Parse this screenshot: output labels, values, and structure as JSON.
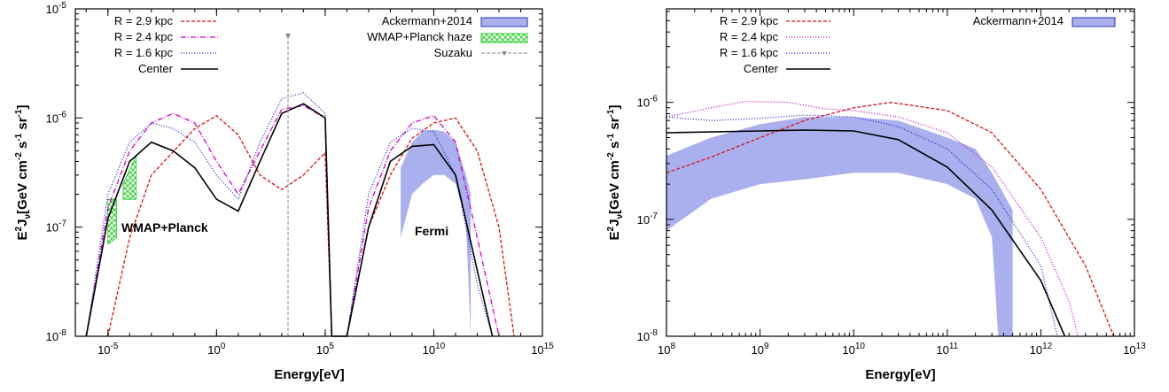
{
  "charts": [
    {
      "xlabel": "Energy[eV]",
      "ylabel": "E²Jν[GeV cm⁻² s⁻¹ sr⁻¹]",
      "x_ticks": [
        {
          "base": "10",
          "exp": "-5"
        },
        {
          "base": "10",
          "exp": "0"
        },
        {
          "base": "10",
          "exp": "5"
        },
        {
          "base": "10",
          "exp": "10"
        },
        {
          "base": "10",
          "exp": "15"
        }
      ],
      "y_ticks": [
        {
          "base": "10",
          "exp": "-8"
        },
        {
          "base": "10",
          "exp": "-7"
        },
        {
          "base": "10",
          "exp": "-6"
        },
        {
          "base": "10",
          "exp": "-5"
        }
      ],
      "legend_left": [
        "R = 2.9 kpc",
        "R = 2.4 kpc",
        "R = 1.6 kpc",
        "Center"
      ],
      "legend_right": [
        "Ackermann+2014",
        "WMAP+Planck haze",
        "Suzaku"
      ],
      "annotations": {
        "wmap": "WMAP+Planck",
        "fermi": "Fermi"
      }
    },
    {
      "xlabel": "Energy[eV]",
      "ylabel": "E²Jν[GeV cm⁻² s⁻¹ sr⁻¹]",
      "x_ticks": [
        {
          "base": "10",
          "exp": "8"
        },
        {
          "base": "10",
          "exp": "9"
        },
        {
          "base": "10",
          "exp": "10"
        },
        {
          "base": "10",
          "exp": "11"
        },
        {
          "base": "10",
          "exp": "12"
        },
        {
          "base": "10",
          "exp": "13"
        }
      ],
      "y_ticks": [
        {
          "base": "10",
          "exp": "-8"
        },
        {
          "base": "10",
          "exp": "-7"
        },
        {
          "base": "10",
          "exp": "-6"
        }
      ],
      "legend_left": [
        "R = 2.9 kpc",
        "R = 2.4 kpc",
        "R = 1.6 kpc",
        "Center"
      ],
      "legend_right": [
        "Ackermann+2014"
      ]
    }
  ],
  "colors": {
    "r29": "#dd1111",
    "r24": "#cc00cc",
    "r16": "#2222cc",
    "center": "#000000",
    "ackermann_fill": "#aab0ee",
    "ackermann_edge": "#2233aa",
    "haze": "#22cc22",
    "suzaku": "#888888"
  },
  "chart_data": [
    {
      "type": "line",
      "x_scale": "log",
      "y_scale": "log",
      "xlim": [
        3e-07,
        1000000000000000.0
      ],
      "ylim": [
        1e-08,
        1e-05
      ],
      "grid": false,
      "legend": "top",
      "series": [
        {
          "name": "R = 2.9 kpc",
          "style": "dashed",
          "points": [
            [
              1e-05,
              1e-08
            ],
            [
              0.0001,
              8e-08
            ],
            [
              0.001,
              3e-07
            ],
            [
              0.1,
              8e-07
            ],
            [
              1,
              1.05e-06
            ],
            [
              10,
              7e-07
            ],
            [
              100,
              3e-07
            ],
            [
              1000.0,
              2.2e-07
            ],
            [
              10000.0,
              3e-07
            ],
            [
              100000.0,
              4.8e-07
            ],
            [
              200000.0,
              1e-08
            ],
            [
              1000000.0,
              1e-08
            ],
            [
              10000000.0,
              1e-07
            ],
            [
              100000000.0,
              3e-07
            ],
            [
              1000000000.0,
              6.5e-07
            ],
            [
              10000000000.0,
              9e-07
            ],
            [
              100000000000.0,
              1e-06
            ],
            [
              1000000000000.0,
              5e-07
            ],
            [
              10000000000000.0,
              1e-07
            ],
            [
              50000000000000.0,
              1e-08
            ]
          ]
        },
        {
          "name": "R = 2.4 kpc",
          "style": "dash-dot",
          "points": [
            [
              1e-06,
              1e-08
            ],
            [
              1e-05,
              1.5e-07
            ],
            [
              0.0001,
              5e-07
            ],
            [
              0.001,
              9e-07
            ],
            [
              0.01,
              1.1e-06
            ],
            [
              0.1,
              9e-07
            ],
            [
              1,
              4e-07
            ],
            [
              10,
              2e-07
            ],
            [
              100,
              5e-07
            ],
            [
              1000.0,
              1.2e-06
            ],
            [
              10000.0,
              1.3e-06
            ],
            [
              100000.0,
              1e-06
            ],
            [
              200000.0,
              1e-08
            ],
            [
              1000000.0,
              1e-08
            ],
            [
              10000000.0,
              1.5e-07
            ],
            [
              100000000.0,
              5e-07
            ],
            [
              1000000000.0,
              9e-07
            ],
            [
              10000000000.0,
              1.05e-06
            ],
            [
              100000000000.0,
              6e-07
            ],
            [
              1000000000000.0,
              8e-08
            ],
            [
              10000000000000.0,
              1e-08
            ]
          ]
        },
        {
          "name": "R = 1.6 kpc",
          "style": "dotted",
          "points": [
            [
              1e-06,
              1e-08
            ],
            [
              1e-05,
              2e-07
            ],
            [
              0.0001,
              6e-07
            ],
            [
              0.001,
              9e-07
            ],
            [
              0.01,
              8e-07
            ],
            [
              0.1,
              6e-07
            ],
            [
              1,
              3e-07
            ],
            [
              10,
              1.8e-07
            ],
            [
              100,
              6e-07
            ],
            [
              1000.0,
              1.5e-06
            ],
            [
              10000.0,
              1.7e-06
            ],
            [
              100000.0,
              1.1e-06
            ],
            [
              200000.0,
              1e-08
            ],
            [
              1000000.0,
              1e-08
            ],
            [
              10000000.0,
              2e-07
            ],
            [
              100000000.0,
              6e-07
            ],
            [
              1000000000.0,
              8e-07
            ],
            [
              10000000000.0,
              7.5e-07
            ],
            [
              100000000000.0,
              3e-07
            ],
            [
              1000000000000.0,
              3e-08
            ],
            [
              5000000000000.0,
              1e-08
            ]
          ]
        },
        {
          "name": "Center",
          "style": "solid",
          "points": [
            [
              1e-06,
              1e-08
            ],
            [
              1e-05,
              1.2e-07
            ],
            [
              0.0001,
              4e-07
            ],
            [
              0.001,
              6e-07
            ],
            [
              0.01,
              5e-07
            ],
            [
              0.1,
              3.5e-07
            ],
            [
              1,
              1.8e-07
            ],
            [
              10,
              1.4e-07
            ],
            [
              100,
              4e-07
            ],
            [
              1000.0,
              1.1e-06
            ],
            [
              10000.0,
              1.35e-06
            ],
            [
              100000.0,
              1e-06
            ],
            [
              200000.0,
              1e-08
            ],
            [
              1000000.0,
              1e-08
            ],
            [
              10000000.0,
              1e-07
            ],
            [
              100000000.0,
              4e-07
            ],
            [
              1000000000.0,
              5.5e-07
            ],
            [
              10000000000.0,
              5.7e-07
            ],
            [
              100000000000.0,
              3e-07
            ],
            [
              1000000000000.0,
              4e-08
            ],
            [
              5000000000000.0,
              1e-08
            ]
          ]
        }
      ],
      "ackermann_band": {
        "x": [
          300000000.0,
          1000000000.0,
          3000000000.0,
          10000000000.0,
          30000000000.0,
          100000000000.0,
          300000000000.0,
          500000000000.0
        ],
        "low": [
          8e-08,
          2e-07,
          2.5e-07,
          3e-07,
          3e-07,
          2.5e-07,
          1.2e-07,
          1e-08
        ],
        "high": [
          3.5e-07,
          6e-07,
          7.5e-07,
          7.8e-07,
          7.5e-07,
          6e-07,
          3e-07,
          2e-07
        ]
      },
      "wmap_haze": [
        {
          "x": [
            1e-05,
            2.5e-05
          ],
          "low": [
            7e-08,
            8e-08
          ],
          "high": [
            1.8e-07,
            1.8e-07
          ]
        },
        {
          "x": [
            5e-05,
            0.0002
          ],
          "low": [
            1.8e-07,
            1.8e-07
          ],
          "high": [
            2.5e-07,
            4.5e-07
          ]
        }
      ],
      "suzaku_upper_limit": {
        "x": 100000.0,
        "y": 6e-06
      }
    },
    {
      "type": "line",
      "x_scale": "log",
      "y_scale": "log",
      "xlim": [
        100000000.0,
        10000000000000.0
      ],
      "ylim": [
        1e-08,
        6e-06
      ],
      "grid": false,
      "legend": "top",
      "series": [
        {
          "name": "R = 2.9 kpc",
          "style": "dashed",
          "points": [
            [
              100000000.0,
              2.5e-07
            ],
            [
              300000000.0,
              3.4e-07
            ],
            [
              1000000000.0,
              5e-07
            ],
            [
              3000000000.0,
              7e-07
            ],
            [
              10000000000.0,
              9e-07
            ],
            [
              25000000000.0,
              1e-06
            ],
            [
              100000000000.0,
              8.5e-07
            ],
            [
              300000000000.0,
              5.5e-07
            ],
            [
              1000000000000.0,
              1.8e-07
            ],
            [
              3000000000000.0,
              4e-08
            ],
            [
              6000000000000.0,
              1e-08
            ]
          ]
        },
        {
          "name": "R = 2.4 kpc",
          "style": "dotted",
          "points": [
            [
              100000000.0,
              7.5e-07
            ],
            [
              300000000.0,
              9e-07
            ],
            [
              700000000.0,
              1.02e-06
            ],
            [
              2000000000.0,
              1e-06
            ],
            [
              5000000000.0,
              8.8e-07
            ],
            [
              10000000000.0,
              8.5e-07
            ],
            [
              30000000000.0,
              7.5e-07
            ],
            [
              100000000000.0,
              5.5e-07
            ],
            [
              300000000000.0,
              2.8e-07
            ],
            [
              1000000000000.0,
              7e-08
            ],
            [
              2000000000000.0,
              2e-08
            ],
            [
              2500000000000.0,
              1e-08
            ]
          ]
        },
        {
          "name": "R = 1.6 kpc",
          "style": "dotted",
          "points": [
            [
              100000000.0,
              7.5e-07
            ],
            [
              300000000.0,
              7e-07
            ],
            [
              1000000000.0,
              7.3e-07
            ],
            [
              3000000000.0,
              7.8e-07
            ],
            [
              10000000000.0,
              7.5e-07
            ],
            [
              30000000000.0,
              6.2e-07
            ],
            [
              100000000000.0,
              4e-07
            ],
            [
              300000000000.0,
              1.8e-07
            ],
            [
              1000000000000.0,
              4e-08
            ],
            [
              1500000000000.0,
              1e-08
            ]
          ]
        },
        {
          "name": "Center",
          "style": "solid",
          "points": [
            [
              100000000.0,
              5.5e-07
            ],
            [
              1000000000.0,
              5.7e-07
            ],
            [
              3000000000.0,
              5.8e-07
            ],
            [
              10000000000.0,
              5.7e-07
            ],
            [
              30000000000.0,
              4.8e-07
            ],
            [
              100000000000.0,
              2.8e-07
            ],
            [
              300000000000.0,
              1.2e-07
            ],
            [
              1000000000000.0,
              3e-08
            ],
            [
              1800000000000.0,
              1e-08
            ]
          ]
        }
      ],
      "ackermann_band": {
        "x": [
          100000000.0,
          300000000.0,
          1000000000.0,
          3000000000.0,
          10000000000.0,
          30000000000.0,
          100000000000.0,
          200000000000.0,
          300000000000.0,
          350000000000.0,
          500000000000.0
        ],
        "low": [
          8e-08,
          1.5e-07,
          2e-07,
          2.2e-07,
          2.5e-07,
          2.5e-07,
          2e-07,
          1.5e-07,
          7e-08,
          1e-08,
          1e-08
        ],
        "high": [
          3.5e-07,
          5e-07,
          6.5e-07,
          7.5e-07,
          7.5e-07,
          7e-07,
          5e-07,
          4e-07,
          2.5e-07,
          2e-07,
          1.2e-07
        ]
      }
    }
  ]
}
